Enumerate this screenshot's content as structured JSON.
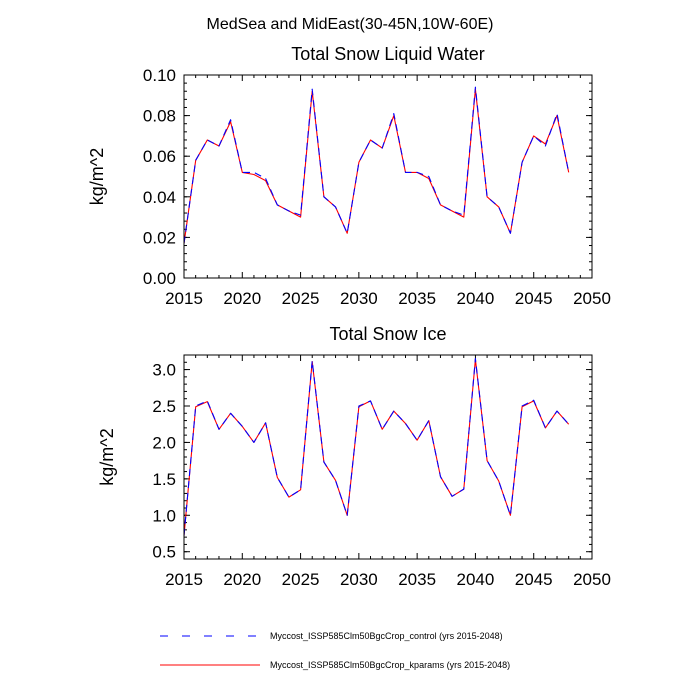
{
  "figure": {
    "title": "MedSea and MidEast(30-45N,10W-60E)"
  },
  "chart_data": [
    {
      "type": "line",
      "title": "Total Snow Liquid Water",
      "xlabel": "",
      "ylabel": "kg/m^2",
      "xlim": [
        2015,
        2050
      ],
      "ylim": [
        0.0,
        0.1
      ],
      "xticks": [
        "2015",
        "2020",
        "2025",
        "2030",
        "2035",
        "2040",
        "2045",
        "2050"
      ],
      "yticks": [
        "0.00",
        "0.02",
        "0.04",
        "0.06",
        "0.08",
        "0.10"
      ],
      "x": [
        2015,
        2016,
        2017,
        2018,
        2019,
        2020,
        2021,
        2022,
        2023,
        2024,
        2025,
        2026,
        2027,
        2028,
        2029,
        2030,
        2031,
        2032,
        2033,
        2034,
        2035,
        2036,
        2037,
        2038,
        2039,
        2040,
        2041,
        2042,
        2043,
        2044,
        2045,
        2046,
        2047,
        2048
      ],
      "series": [
        {
          "name": "Myccost_ISSP585Clm50BgcCrop_control (yrs 2015-2048)",
          "color": "#0000ff",
          "style": "dashed",
          "values": [
            0.017,
            0.058,
            0.068,
            0.065,
            0.078,
            0.052,
            0.052,
            0.049,
            0.036,
            0.033,
            0.031,
            0.093,
            0.04,
            0.035,
            0.022,
            0.057,
            0.068,
            0.064,
            0.081,
            0.052,
            0.052,
            0.05,
            0.036,
            0.033,
            0.031,
            0.094,
            0.04,
            0.035,
            0.022,
            0.057,
            0.07,
            0.065,
            0.081,
            0.052
          ]
        },
        {
          "name": "Myccost_ISSP585Clm50BgcCrop_kparams (yrs 2015-2048)",
          "color": "#ff0000",
          "style": "solid",
          "values": [
            0.017,
            0.058,
            0.068,
            0.065,
            0.077,
            0.052,
            0.051,
            0.048,
            0.036,
            0.033,
            0.03,
            0.092,
            0.04,
            0.035,
            0.022,
            0.057,
            0.068,
            0.064,
            0.08,
            0.052,
            0.052,
            0.049,
            0.036,
            0.033,
            0.03,
            0.093,
            0.04,
            0.035,
            0.022,
            0.057,
            0.07,
            0.066,
            0.08,
            0.052
          ]
        }
      ]
    },
    {
      "type": "line",
      "title": "Total Snow Ice",
      "xlabel": "",
      "ylabel": "kg/m^2",
      "xlim": [
        2015,
        2050
      ],
      "ylim": [
        0.4,
        3.2
      ],
      "xticks": [
        "2015",
        "2020",
        "2025",
        "2030",
        "2035",
        "2040",
        "2045",
        "2050"
      ],
      "yticks": [
        "0.5",
        "1.0",
        "1.5",
        "2.0",
        "2.5",
        "3.0"
      ],
      "x": [
        2015,
        2016,
        2017,
        2018,
        2019,
        2020,
        2021,
        2022,
        2023,
        2024,
        2025,
        2026,
        2027,
        2028,
        2029,
        2030,
        2031,
        2032,
        2033,
        2034,
        2035,
        2036,
        2037,
        2038,
        2039,
        2040,
        2041,
        2042,
        2043,
        2044,
        2045,
        2046,
        2047,
        2048
      ],
      "series": [
        {
          "name": "Myccost_ISSP585Clm50BgcCrop_control (yrs 2015-2048)",
          "color": "#0000ff",
          "style": "dashed",
          "values": [
            0.72,
            2.5,
            2.57,
            2.18,
            2.4,
            2.22,
            2.0,
            2.27,
            1.52,
            1.25,
            1.35,
            3.12,
            1.73,
            1.48,
            1.0,
            2.5,
            2.57,
            2.18,
            2.43,
            2.26,
            2.03,
            2.3,
            1.53,
            1.26,
            1.36,
            3.15,
            1.75,
            1.47,
            1.0,
            2.5,
            2.58,
            2.2,
            2.43,
            2.25
          ]
        },
        {
          "name": "Myccost_ISSP585Clm50BgcCrop_kparams (yrs 2015-2048)",
          "color": "#ff0000",
          "style": "solid",
          "values": [
            0.72,
            2.49,
            2.56,
            2.18,
            2.4,
            2.22,
            2.0,
            2.27,
            1.52,
            1.25,
            1.35,
            3.11,
            1.73,
            1.48,
            1.0,
            2.49,
            2.57,
            2.18,
            2.43,
            2.26,
            2.03,
            2.3,
            1.53,
            1.26,
            1.36,
            3.14,
            1.75,
            1.47,
            1.0,
            2.49,
            2.57,
            2.2,
            2.43,
            2.25
          ]
        }
      ]
    }
  ],
  "legend": {
    "items": [
      {
        "label": "Myccost_ISSP585Clm50BgcCrop_control (yrs 2015-2048)",
        "color": "#0000ff",
        "style": "dashed"
      },
      {
        "label": "Myccost_ISSP585Clm50BgcCrop_kparams (yrs 2015-2048)",
        "color": "#ff0000",
        "style": "solid"
      }
    ]
  }
}
